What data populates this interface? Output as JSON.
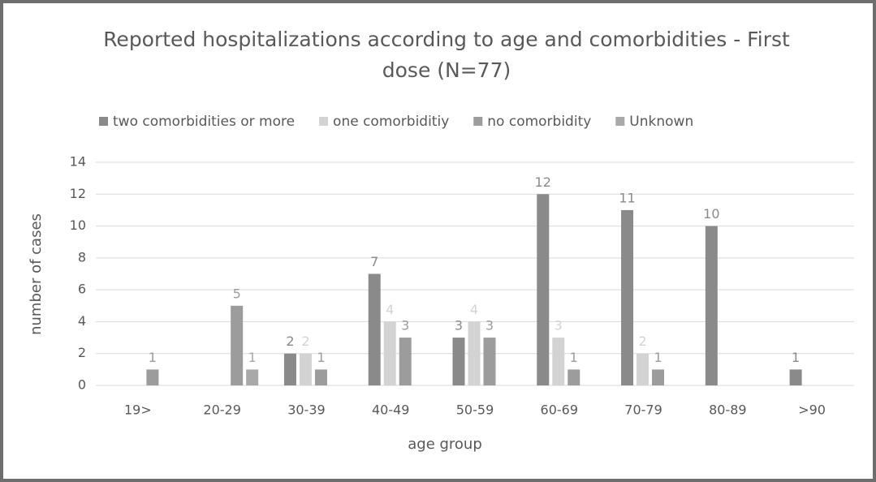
{
  "chart_data": {
    "type": "bar",
    "title": "Reported hospitalizations according to age and comorbidities - First dose (N=77)",
    "x_label": "age group",
    "y_label": "number of cases",
    "categories": [
      "19>",
      "20-29",
      "30-39",
      "40-49",
      "50-59",
      "60-69",
      "70-79",
      "80-89",
      ">90"
    ],
    "series": [
      {
        "name": "two comorbidities or more",
        "color": "#8a8a8a",
        "values": [
          null,
          null,
          2,
          7,
          3,
          12,
          11,
          10,
          1
        ]
      },
      {
        "name": "one comorbiditiy",
        "color": "#d3d3d3",
        "values": [
          null,
          null,
          2,
          4,
          4,
          3,
          2,
          null,
          null
        ]
      },
      {
        "name": "no comorbidity",
        "color": "#9c9c9c",
        "values": [
          1,
          5,
          1,
          3,
          3,
          1,
          1,
          null,
          null
        ]
      },
      {
        "name": "Unknown",
        "color": "#a9a9a9",
        "values": [
          null,
          1,
          null,
          null,
          null,
          null,
          null,
          null,
          null
        ]
      }
    ],
    "ylim": [
      0,
      14
    ],
    "yticks": [
      0,
      2,
      4,
      6,
      8,
      10,
      12,
      14
    ],
    "grid": true,
    "legend": "top"
  }
}
